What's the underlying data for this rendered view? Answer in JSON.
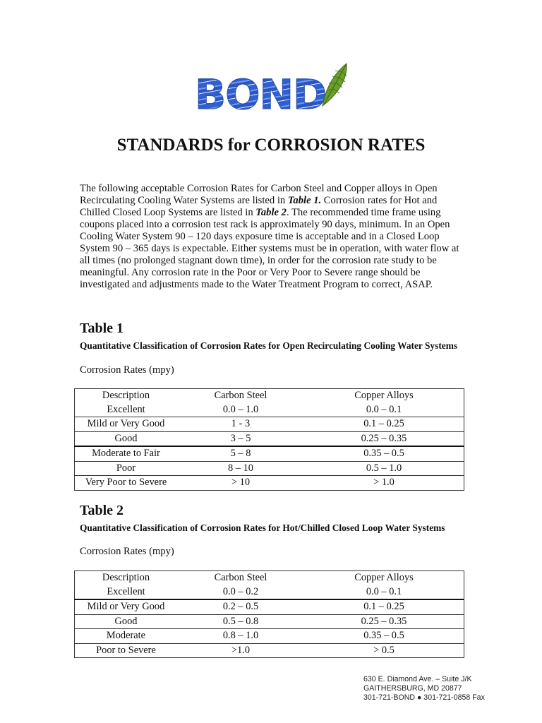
{
  "logo": {
    "text": "BOND"
  },
  "title": "STANDARDS for CORROSION RATES",
  "intro": {
    "p1": "The following acceptable Corrosion Rates for Carbon Steel and Copper alloys in Open Recirculating Cooling Water Systems are listed in ",
    "t1": "Table 1.",
    "p2": " Corrosion rates for Hot and Chilled Closed Loop Systems are listed in ",
    "t2": "Table 2",
    "p3": ". The recommended time frame using coupons placed into a corrosion test rack is approximately 90 days, minimum. In an Open Cooling Water System 90 – 120 days exposure time is acceptable and in a Closed Loop System 90 – 365 days is expectable. Either systems must be in operation, with water flow at all times (no prolonged stagnant down time), in order for the corrosion rate study to be meaningful. Any corrosion rate in the Poor or Very Poor to Severe range should be investigated and adjustments made to the Water Treatment Program to correct, ASAP."
  },
  "table1": {
    "heading": "Table 1",
    "subtitle": "Quantitative Classification of Corrosion Rates for Open Recirculating Cooling Water Systems",
    "unit": "Corrosion Rates (mpy)",
    "columns": [
      "Description",
      "Carbon Steel",
      "Copper Alloys"
    ],
    "rows": [
      [
        "Excellent",
        "0.0 – 1.0",
        "0.0 – 0.1"
      ],
      [
        "Mild or Very Good",
        "1 - 3",
        "0.1 – 0.25"
      ],
      [
        "Good",
        "3 – 5",
        "0.25 – 0.35"
      ],
      [
        "Moderate to Fair",
        "5 – 8",
        "0.35 – 0.5"
      ],
      [
        "Poor",
        "8 – 10",
        "0.5 – 1.0"
      ],
      [
        "Very Poor to Severe",
        "> 10",
        "> 1.0"
      ]
    ]
  },
  "table2": {
    "heading": "Table 2",
    "subtitle": "Quantitative Classification of Corrosion Rates for Hot/Chilled Closed Loop Water Systems",
    "unit": "Corrosion Rates (mpy)",
    "columns": [
      "Description",
      "Carbon Steel",
      "Copper Alloys"
    ],
    "rows": [
      [
        "Excellent",
        "0.0 – 0.2",
        "0.0 – 0.1"
      ],
      [
        "Mild or Very Good",
        "0.2 – 0.5",
        "0.1 – 0.25"
      ],
      [
        "Good",
        "0.5 – 0.8",
        "0.25 – 0.35"
      ],
      [
        "Moderate",
        "0.8 – 1.0",
        "0.35 – 0.5"
      ],
      [
        "Poor to Severe",
        ">1.0",
        "> 0.5"
      ]
    ]
  },
  "footer": {
    "line1": "630 E. Diamond Ave. – Suite J/K",
    "line2": "GAITHERSBURG, MD 20877",
    "line3": "301-721-BOND ● 301-721-0858 Fax"
  },
  "colors": {
    "logo_blue": "#3a6fd8",
    "leaf_green": "#6aa02a"
  }
}
